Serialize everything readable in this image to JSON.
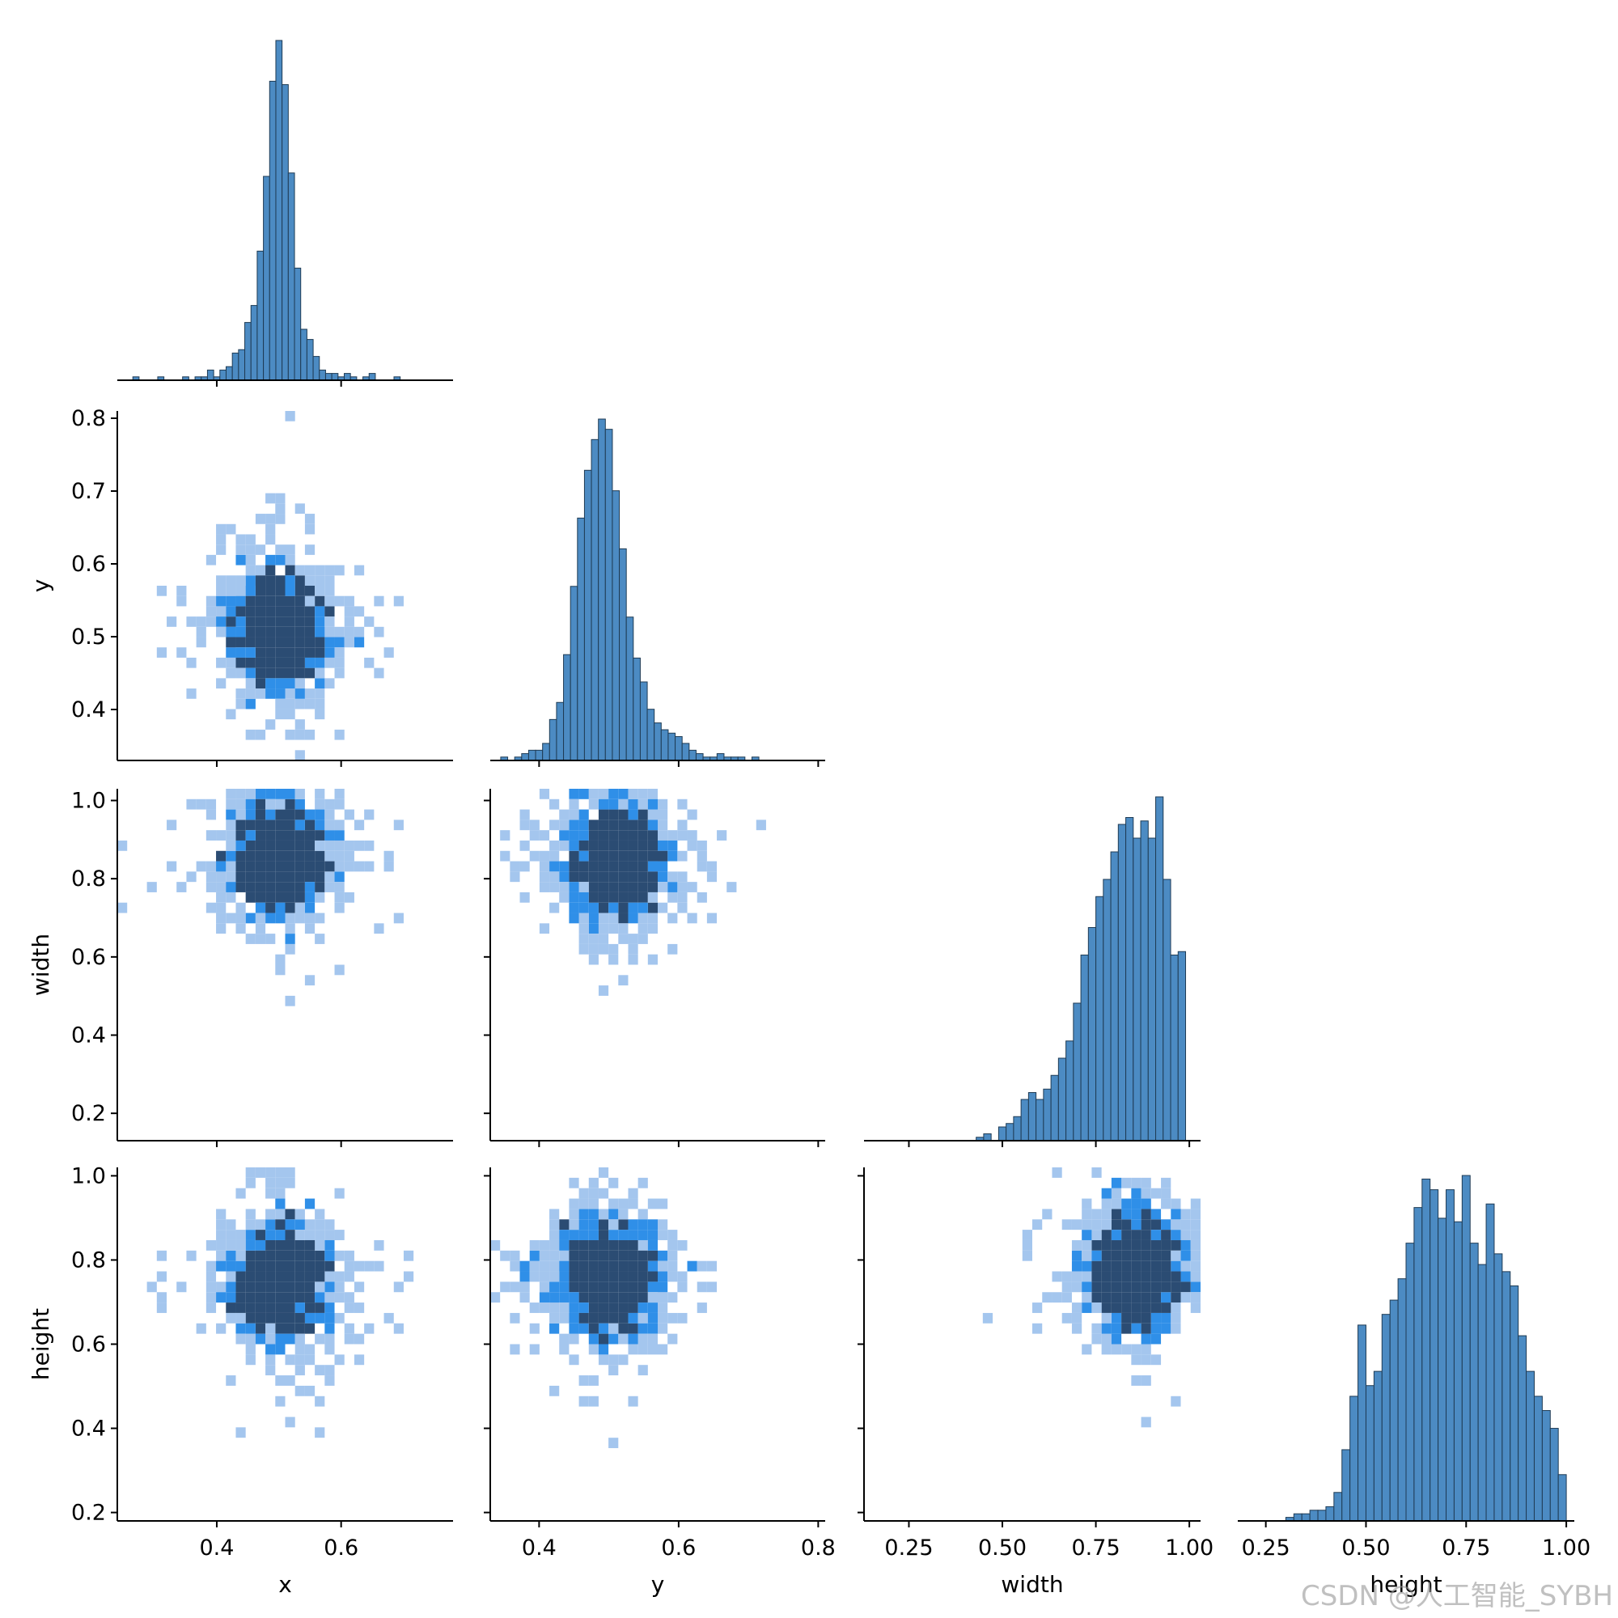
{
  "watermark": "CSDN @人工智能_SYBH",
  "chart_data": {
    "type": "pairplot",
    "variables": [
      "x",
      "y",
      "width",
      "height"
    ],
    "layout": "corner",
    "diagonal": "histogram",
    "offdiagonal": "heatmap",
    "colors": {
      "bar": "#4c8bc3",
      "bar_edge": "#1f3b54",
      "light": "#a4c6ee",
      "mid": "#2f8fe8",
      "dark": "#2b4c73"
    },
    "axes": {
      "x": {
        "label": "x",
        "range": [
          0.24,
          0.78
        ],
        "ticks": [
          0.4,
          0.6
        ],
        "tick_labels": [
          "0.4",
          "0.6"
        ]
      },
      "y": {
        "label": "y",
        "range": [
          0.33,
          0.81
        ],
        "ticks": [
          0.4,
          0.5,
          0.6,
          0.7,
          0.8
        ],
        "tick_labels": [
          "0.4",
          "0.5",
          "0.6",
          "0.7",
          "0.8"
        ],
        "x_ticks": [
          0.4,
          0.6,
          0.8
        ],
        "x_tick_labels": [
          "0.4",
          "0.6",
          "0.8"
        ]
      },
      "width": {
        "label": "width",
        "range": [
          0.13,
          1.03
        ],
        "ticks": [
          0.2,
          0.4,
          0.6,
          0.8,
          1.0
        ],
        "tick_labels": [
          "0.2",
          "0.4",
          "0.6",
          "0.8",
          "1.0"
        ],
        "x_ticks": [
          0.25,
          0.5,
          0.75,
          1.0
        ],
        "x_tick_labels": [
          "0.25",
          "0.50",
          "0.75",
          "1.00"
        ]
      },
      "height": {
        "label": "height",
        "range": [
          0.18,
          1.02
        ],
        "ticks": [
          0.2,
          0.4,
          0.6,
          0.8,
          1.0
        ],
        "tick_labels": [
          "0.2",
          "0.4",
          "0.6",
          "0.8",
          "1.0"
        ],
        "x_ticks": [
          0.25,
          0.5,
          0.75,
          1.0
        ],
        "x_tick_labels": [
          "0.25",
          "0.50",
          "0.75",
          "1.00"
        ]
      }
    },
    "histograms": {
      "x": [
        [
          0.27,
          1
        ],
        [
          0.31,
          1
        ],
        [
          0.35,
          1
        ],
        [
          0.37,
          1
        ],
        [
          0.38,
          1
        ],
        [
          0.39,
          3
        ],
        [
          0.4,
          1
        ],
        [
          0.41,
          3
        ],
        [
          0.42,
          4
        ],
        [
          0.43,
          8
        ],
        [
          0.44,
          9
        ],
        [
          0.45,
          17
        ],
        [
          0.46,
          22
        ],
        [
          0.47,
          38
        ],
        [
          0.48,
          60
        ],
        [
          0.49,
          88
        ],
        [
          0.5,
          100
        ],
        [
          0.51,
          87
        ],
        [
          0.52,
          61
        ],
        [
          0.53,
          33
        ],
        [
          0.54,
          15
        ],
        [
          0.55,
          12
        ],
        [
          0.56,
          7
        ],
        [
          0.57,
          3
        ],
        [
          0.58,
          2
        ],
        [
          0.59,
          2
        ],
        [
          0.6,
          1
        ],
        [
          0.61,
          2
        ],
        [
          0.62,
          1
        ],
        [
          0.64,
          1
        ],
        [
          0.65,
          2
        ],
        [
          0.69,
          1
        ]
      ],
      "y": [
        [
          0.35,
          1
        ],
        [
          0.37,
          1
        ],
        [
          0.38,
          2
        ],
        [
          0.39,
          3
        ],
        [
          0.4,
          3
        ],
        [
          0.41,
          5
        ],
        [
          0.42,
          12
        ],
        [
          0.43,
          17
        ],
        [
          0.44,
          31
        ],
        [
          0.45,
          51
        ],
        [
          0.46,
          71
        ],
        [
          0.47,
          85
        ],
        [
          0.48,
          94
        ],
        [
          0.49,
          100
        ],
        [
          0.5,
          97
        ],
        [
          0.51,
          79
        ],
        [
          0.52,
          62
        ],
        [
          0.53,
          42
        ],
        [
          0.54,
          30
        ],
        [
          0.55,
          23
        ],
        [
          0.56,
          15
        ],
        [
          0.57,
          11
        ],
        [
          0.58,
          9
        ],
        [
          0.59,
          8
        ],
        [
          0.6,
          7
        ],
        [
          0.61,
          5
        ],
        [
          0.62,
          3
        ],
        [
          0.63,
          2
        ],
        [
          0.64,
          1
        ],
        [
          0.65,
          1
        ],
        [
          0.66,
          2
        ],
        [
          0.67,
          1
        ],
        [
          0.68,
          1
        ],
        [
          0.69,
          1
        ],
        [
          0.71,
          1
        ]
      ],
      "width": [
        [
          0.44,
          1
        ],
        [
          0.46,
          2
        ],
        [
          0.5,
          4
        ],
        [
          0.52,
          5
        ],
        [
          0.54,
          7
        ],
        [
          0.56,
          12
        ],
        [
          0.58,
          14
        ],
        [
          0.6,
          12
        ],
        [
          0.62,
          15
        ],
        [
          0.64,
          19
        ],
        [
          0.66,
          24
        ],
        [
          0.68,
          29
        ],
        [
          0.7,
          40
        ],
        [
          0.72,
          54
        ],
        [
          0.74,
          62
        ],
        [
          0.76,
          71
        ],
        [
          0.78,
          76
        ],
        [
          0.8,
          84
        ],
        [
          0.82,
          92
        ],
        [
          0.84,
          94
        ],
        [
          0.86,
          88
        ],
        [
          0.88,
          93
        ],
        [
          0.9,
          88
        ],
        [
          0.92,
          100
        ],
        [
          0.94,
          76
        ],
        [
          0.96,
          54
        ],
        [
          0.98,
          55
        ]
      ],
      "height": [
        [
          0.31,
          1
        ],
        [
          0.33,
          2
        ],
        [
          0.35,
          2
        ],
        [
          0.37,
          3
        ],
        [
          0.39,
          3
        ],
        [
          0.41,
          4
        ],
        [
          0.43,
          8
        ],
        [
          0.45,
          20
        ],
        [
          0.47,
          35
        ],
        [
          0.49,
          55
        ],
        [
          0.51,
          38
        ],
        [
          0.53,
          42
        ],
        [
          0.55,
          58
        ],
        [
          0.57,
          62
        ],
        [
          0.59,
          68
        ],
        [
          0.61,
          78
        ],
        [
          0.63,
          88
        ],
        [
          0.65,
          96
        ],
        [
          0.67,
          93
        ],
        [
          0.69,
          85
        ],
        [
          0.71,
          93
        ],
        [
          0.73,
          84
        ],
        [
          0.75,
          97
        ],
        [
          0.77,
          78
        ],
        [
          0.79,
          72
        ],
        [
          0.81,
          89
        ],
        [
          0.83,
          75
        ],
        [
          0.85,
          70
        ],
        [
          0.87,
          66
        ],
        [
          0.89,
          52
        ],
        [
          0.91,
          42
        ],
        [
          0.93,
          35
        ],
        [
          0.95,
          31
        ],
        [
          0.97,
          26
        ],
        [
          0.99,
          13
        ]
      ]
    },
    "density_centers": {
      "x_y": [
        0.5,
        0.51
      ],
      "x_width": [
        0.5,
        0.86
      ],
      "y_width": [
        0.51,
        0.85
      ],
      "x_height": [
        0.5,
        0.75
      ],
      "y_height": [
        0.5,
        0.76
      ],
      "width_height": [
        0.86,
        0.78
      ]
    }
  }
}
